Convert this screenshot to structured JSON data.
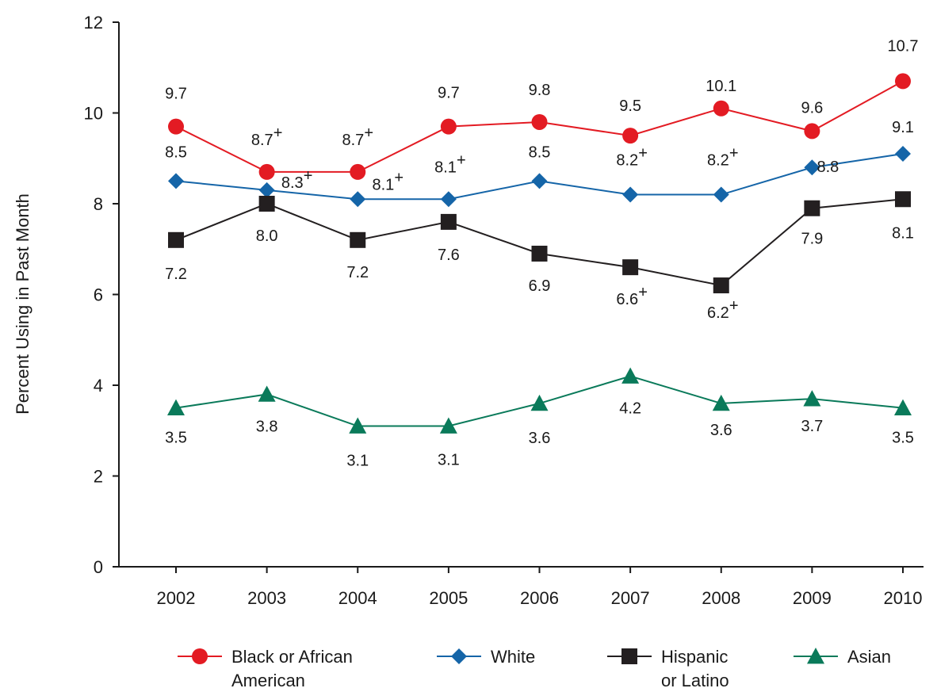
{
  "chart_data": {
    "type": "line",
    "title": "",
    "xlabel": "",
    "ylabel": "Percent Using in Past Month",
    "ylim": [
      0,
      12
    ],
    "yticks": [
      0,
      2,
      4,
      6,
      8,
      10,
      12
    ],
    "categories": [
      "2002",
      "2003",
      "2004",
      "2005",
      "2006",
      "2007",
      "2008",
      "2009",
      "2010"
    ],
    "grid": false,
    "legend_position": "bottom",
    "series": [
      {
        "name": "Black or African American",
        "legend_lines": [
          "Black or African",
          "American"
        ],
        "color": "#e31b23",
        "marker": "circle",
        "values": [
          9.7,
          8.7,
          8.7,
          9.7,
          9.8,
          9.5,
          10.1,
          9.6,
          10.7
        ],
        "labels": [
          "9.7",
          "8.7",
          "8.7",
          "9.7",
          "9.8",
          "9.5",
          "10.1",
          "9.6",
          "10.7"
        ],
        "marks": [
          "",
          "+",
          "+",
          "",
          "",
          "",
          "",
          "",
          ""
        ]
      },
      {
        "name": "White",
        "legend_lines": [
          "White"
        ],
        "color": "#1565a8",
        "marker": "diamond",
        "values": [
          8.5,
          8.3,
          8.1,
          8.1,
          8.5,
          8.2,
          8.2,
          8.8,
          9.1
        ],
        "labels": [
          "8.5",
          "8.3",
          "8.1",
          "8.1",
          "8.5",
          "8.2",
          "8.2",
          "8.8",
          "9.1"
        ],
        "marks": [
          "",
          "+",
          "+",
          "+",
          "",
          "+",
          "+",
          "",
          ""
        ]
      },
      {
        "name": "Hispanic or Latino",
        "legend_lines": [
          "Hispanic",
          "or Latino"
        ],
        "color": "#231f20",
        "marker": "square",
        "values": [
          7.2,
          8.0,
          7.2,
          7.6,
          6.9,
          6.6,
          6.2,
          7.9,
          8.1
        ],
        "labels": [
          "7.2",
          "8.0",
          "7.2",
          "7.6",
          "6.9",
          "6.6",
          "6.2",
          "7.9",
          "8.1"
        ],
        "marks": [
          "",
          "",
          "",
          "",
          "",
          "+",
          "+",
          "",
          ""
        ]
      },
      {
        "name": "Asian",
        "legend_lines": [
          "Asian"
        ],
        "color": "#0a7a5a",
        "marker": "triangle",
        "values": [
          3.5,
          3.8,
          3.1,
          3.1,
          3.6,
          4.2,
          3.6,
          3.7,
          3.5
        ],
        "labels": [
          "3.5",
          "3.8",
          "3.1",
          "3.1",
          "3.6",
          "4.2",
          "3.6",
          "3.7",
          "3.5"
        ],
        "marks": [
          "",
          "",
          "",
          "",
          "",
          "",
          "",
          "",
          ""
        ]
      }
    ]
  }
}
